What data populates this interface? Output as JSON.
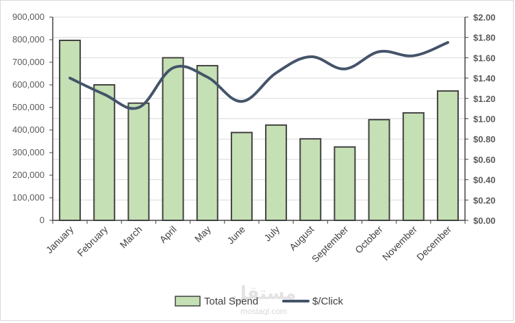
{
  "chart_data": {
    "type": "bar",
    "categories": [
      "January",
      "February",
      "March",
      "April",
      "May",
      "June",
      "July",
      "August",
      "September",
      "October",
      "November",
      "December"
    ],
    "series": [
      {
        "name": "Total Spend",
        "type": "bar",
        "axis": "left",
        "values": [
          797000,
          600000,
          519000,
          720000,
          685000,
          389000,
          422000,
          361000,
          325000,
          446000,
          476000,
          573000
        ]
      },
      {
        "name": "$/Click",
        "type": "line",
        "smooth": true,
        "axis": "right",
        "values": [
          1.4,
          1.24,
          1.11,
          1.5,
          1.41,
          1.17,
          1.45,
          1.61,
          1.49,
          1.66,
          1.62,
          1.75
        ]
      }
    ],
    "y_left": {
      "min": 0,
      "max": 900000,
      "step": 100000,
      "tick_labels": [
        "0",
        "100,000",
        "200,000",
        "300,000",
        "400,000",
        "500,000",
        "600,000",
        "700,000",
        "800,000",
        "900,000"
      ]
    },
    "y_right": {
      "min": 0,
      "max": 2.0,
      "step": 0.2,
      "tick_labels": [
        "$0.00",
        "$0.20",
        "$0.40",
        "$0.60",
        "$0.80",
        "$1.00",
        "$1.20",
        "$1.40",
        "$1.60",
        "$1.80",
        "$2.00"
      ]
    },
    "grid": true,
    "legend_position": "bottom",
    "colors": {
      "bar_fill": "#c5e0b4",
      "bar_stroke": "#404040",
      "line": "#44546a",
      "grid": "#d9d9d9"
    }
  },
  "watermark": {
    "main": "مستقل",
    "sub": "mostaql.com"
  }
}
